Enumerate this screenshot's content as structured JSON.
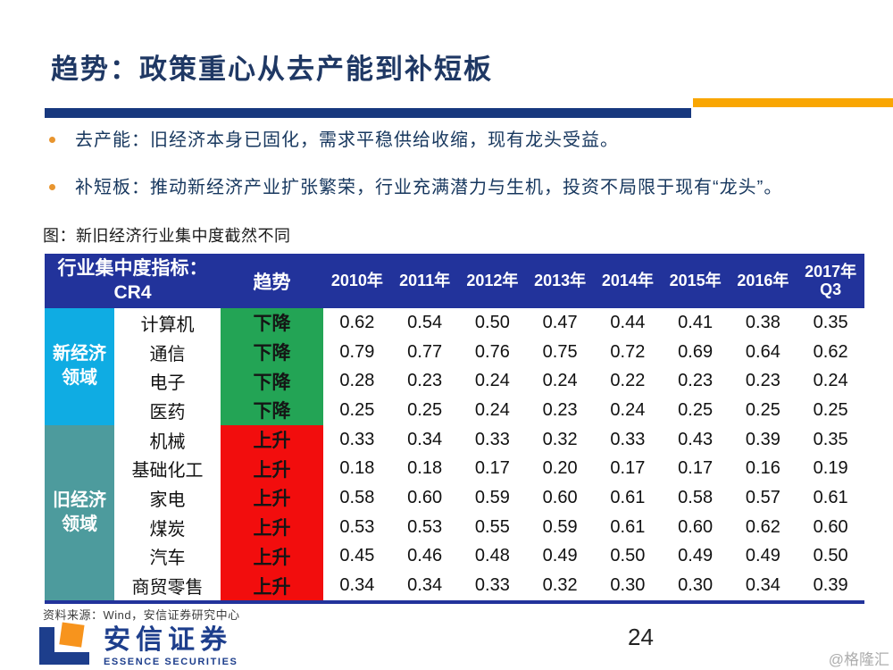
{
  "slide": {
    "title": "趋势：政策重心从去产能到补短板",
    "bullets": [
      "去产能：旧经济本身已固化，需求平稳供给收缩，现有龙头受益。",
      "补短板：推动新经济产业扩张繁荣，行业充满潜力与生机，投资不局限于现有“龙头”。"
    ],
    "caption": "图：新旧经济行业集中度截然不同",
    "source": "资料来源：Wind，安信证券研究中心",
    "page_number": "24",
    "watermark": "@格隆汇",
    "logo": {
      "cn": "安信证券",
      "en": "ESSENCE SECURITIES"
    }
  },
  "colors": {
    "header_blue": "#22339B",
    "bar_navy": "#17387E",
    "bar_orange": "#F9A602",
    "bullet_orange": "#E8952F",
    "title_navy": "#1F3864",
    "text_navy": "#17375E",
    "logo_blue": "#1D3E8C",
    "logo_orange": "#F7941D",
    "new_economy_cyan": "#0FACE3",
    "old_economy_teal": "#4D9B9D",
    "down_green": "#23A455",
    "up_red": "#F20D0D"
  },
  "table": {
    "header": {
      "indicator": "行业集中度指标：\nCR4",
      "trend": "趋势",
      "years": [
        "2010年",
        "2011年",
        "2012年",
        "2013年",
        "2014年",
        "2015年",
        "2016年",
        "2017年\nQ3"
      ]
    },
    "groups": [
      {
        "label": "新经济领域",
        "label_display": "新经济\n领域",
        "group_color": "new_economy_cyan",
        "trend_label": "下降",
        "trend_color": "down_green",
        "rows": [
          {
            "industry": "计算机",
            "values": [
              "0.62",
              "0.54",
              "0.50",
              "0.47",
              "0.44",
              "0.41",
              "0.38",
              "0.35"
            ]
          },
          {
            "industry": "通信",
            "values": [
              "0.79",
              "0.77",
              "0.76",
              "0.75",
              "0.72",
              "0.69",
              "0.64",
              "0.62"
            ]
          },
          {
            "industry": "电子",
            "values": [
              "0.28",
              "0.23",
              "0.24",
              "0.24",
              "0.22",
              "0.23",
              "0.23",
              "0.24"
            ]
          },
          {
            "industry": "医药",
            "values": [
              "0.25",
              "0.25",
              "0.24",
              "0.23",
              "0.24",
              "0.25",
              "0.25",
              "0.25"
            ]
          }
        ]
      },
      {
        "label": "旧经济领域",
        "label_display": "旧经济\n领域",
        "group_color": "old_economy_teal",
        "trend_label": "上升",
        "trend_color": "up_red",
        "rows": [
          {
            "industry": "机械",
            "values": [
              "0.33",
              "0.34",
              "0.33",
              "0.32",
              "0.33",
              "0.43",
              "0.39",
              "0.35"
            ]
          },
          {
            "industry": "基础化工",
            "values": [
              "0.18",
              "0.18",
              "0.17",
              "0.20",
              "0.17",
              "0.17",
              "0.16",
              "0.19"
            ]
          },
          {
            "industry": "家电",
            "values": [
              "0.58",
              "0.60",
              "0.59",
              "0.60",
              "0.61",
              "0.58",
              "0.57",
              "0.61"
            ]
          },
          {
            "industry": "煤炭",
            "values": [
              "0.53",
              "0.53",
              "0.55",
              "0.59",
              "0.61",
              "0.60",
              "0.62",
              "0.60"
            ]
          },
          {
            "industry": "汽车",
            "values": [
              "0.45",
              "0.46",
              "0.48",
              "0.49",
              "0.50",
              "0.49",
              "0.49",
              "0.50"
            ]
          },
          {
            "industry": "商贸零售",
            "values": [
              "0.34",
              "0.34",
              "0.33",
              "0.32",
              "0.30",
              "0.30",
              "0.34",
              "0.39"
            ]
          }
        ]
      }
    ]
  }
}
